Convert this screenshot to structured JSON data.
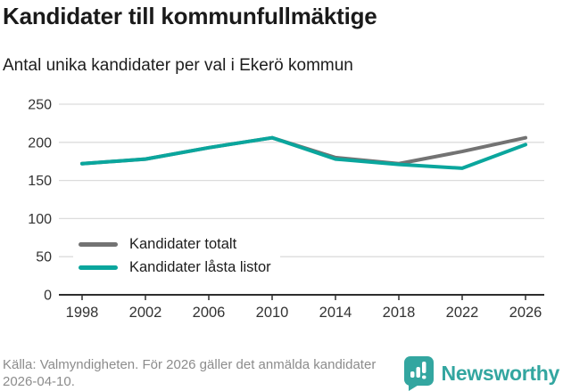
{
  "header": {
    "title": "Kandidater till kommunfullmäktige",
    "subtitle": "Antal unika kandidater per val i Ekerö kommun"
  },
  "chart_data": {
    "type": "line",
    "x": [
      1998,
      2002,
      2006,
      2010,
      2014,
      2018,
      2022,
      2026
    ],
    "series": [
      {
        "name": "Kandidater totalt",
        "color": "#737373",
        "values": [
          172,
          178,
          193,
          206,
          180,
          172,
          188,
          206
        ]
      },
      {
        "name": "Kandidater låsta listor",
        "color": "#0aa69d",
        "values": [
          172,
          178,
          193,
          206,
          178,
          171,
          166,
          197
        ]
      }
    ],
    "title": "Kandidater till kommunfullmäktige",
    "subtitle": "Antal unika kandidater per val i Ekerö kommun",
    "xlabel": "",
    "ylabel": "",
    "ylim": [
      0,
      250
    ],
    "yticks": [
      0,
      50,
      100,
      150,
      200,
      250
    ],
    "grid": true,
    "legend_position": "inside-bottom-left"
  },
  "footer": {
    "source": "Källa: Valmyndigheten. För 2026 gäller det anmälda kandidater 2026-04-10.",
    "brand": "Newsworthy"
  },
  "colors": {
    "accent": "#33a6a0",
    "line_total": "#737373",
    "line_locked": "#0aa69d",
    "grid": "#dcdcdc",
    "axis": "#2e2e2e",
    "tick_text": "#333333",
    "muted_text": "#8c8c8c"
  },
  "icons": {
    "brand_logo": "newsworthy-speech-bubble-bar-chart-icon"
  }
}
